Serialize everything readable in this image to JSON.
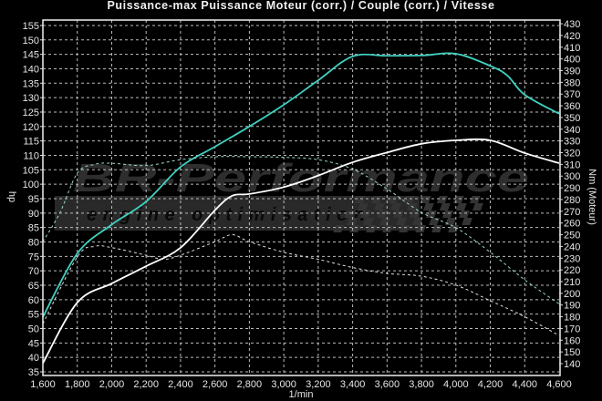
{
  "chart_data": {
    "type": "line",
    "title": "Puissance-max Puissance Moteur (corr.) / Couple (corr.) / Vitesse",
    "xlabel": "1/min",
    "ylabel_left": "hp",
    "ylabel_right": "Nm (Moteur)",
    "xlim": [
      1600,
      4600
    ],
    "ylim_left": [
      35,
      155
    ],
    "ylim_right": [
      140,
      430
    ],
    "x_ticks": [
      "1,600",
      "1,800",
      "2,000",
      "2,200",
      "2,400",
      "2,600",
      "2,800",
      "3,000",
      "3,200",
      "3,400",
      "3,600",
      "3,800",
      "4,000",
      "4,200",
      "4,400",
      "4,600"
    ],
    "y_left_ticks": [
      "155",
      "150",
      "145",
      "140",
      "135",
      "130",
      "125",
      "120",
      "115",
      "110",
      "105",
      "100",
      "95",
      "90",
      "85",
      "80",
      "75",
      "70",
      "65",
      "60",
      "55",
      "50",
      "45",
      "40",
      "35"
    ],
    "y_right_ticks": [
      "430",
      "420",
      "410",
      "400",
      "390",
      "380",
      "370",
      "360",
      "350",
      "340",
      "330",
      "320",
      "310",
      "300",
      "290",
      "280",
      "270",
      "260",
      "250",
      "240",
      "230",
      "220",
      "210",
      "200",
      "190",
      "180",
      "170",
      "160",
      "150",
      "140"
    ],
    "grid": true,
    "series": [
      {
        "axis": "left",
        "style": "solid",
        "color": "#40d0c0",
        "x": [
          1600,
          1800,
          2000,
          2200,
          2400,
          2600,
          2800,
          3000,
          3200,
          3400,
          3600,
          3800,
          4000,
          4200,
          4300,
          4400,
          4600
        ],
        "y": [
          54,
          76,
          86,
          94,
          106,
          113,
          120,
          127.5,
          136,
          144.3,
          144.5,
          144.6,
          145.2,
          141,
          137.6,
          131,
          124.4
        ]
      },
      {
        "axis": "left",
        "style": "solid",
        "color": "#ffffff",
        "x": [
          1600,
          1800,
          2000,
          2200,
          2400,
          2600,
          2700,
          2800,
          3000,
          3200,
          3400,
          3600,
          3800,
          4000,
          4200,
          4400,
          4600
        ],
        "y": [
          38,
          59,
          65.6,
          71.6,
          78,
          91,
          96,
          96.6,
          99,
          103,
          107.6,
          111,
          114,
          115.2,
          115.2,
          110.8,
          107.3
        ]
      },
      {
        "axis": "right",
        "style": "dashed",
        "color": "#9fd8d0",
        "x": [
          1600,
          1700,
          1800,
          1900,
          2000,
          2200,
          2400,
          2600,
          2800,
          3000,
          3200,
          3400,
          3600,
          3800,
          4000,
          4200,
          4400,
          4600
        ],
        "y": [
          244,
          269,
          302.5,
          310,
          311,
          309,
          314,
          316.5,
          316.5,
          316,
          314,
          306,
          289,
          269,
          256,
          235,
          211.5,
          191
        ]
      },
      {
        "axis": "right",
        "style": "dashed",
        "color": "#e0e0e0",
        "x": [
          1600,
          1800,
          1900,
          2000,
          2200,
          2300,
          2400,
          2600,
          2700,
          2800,
          3000,
          3200,
          3400,
          3600,
          3800,
          4000,
          4200,
          4400,
          4600
        ],
        "y": [
          174,
          231,
          240,
          239,
          232.5,
          229,
          232.5,
          244,
          250,
          244,
          235,
          229,
          222,
          217,
          214.6,
          207,
          193.7,
          180,
          164
        ]
      }
    ]
  },
  "watermark": {
    "brand": "BR-Performance",
    "tagline": "engine optimisation"
  }
}
